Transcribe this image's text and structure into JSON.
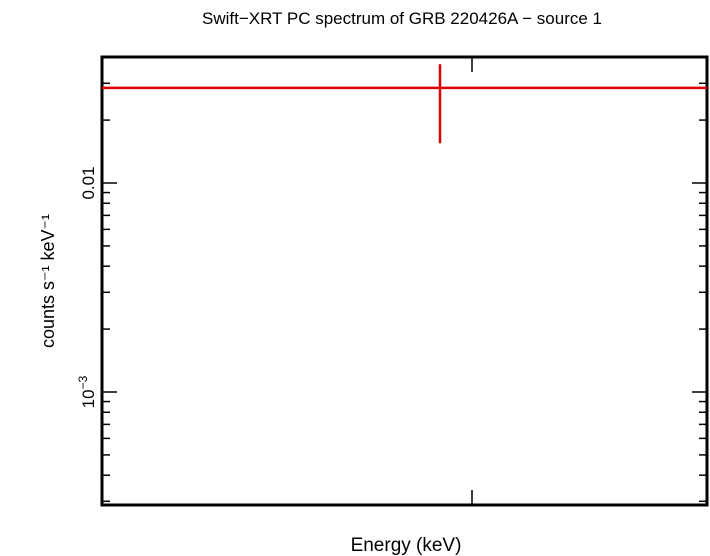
{
  "chart_data": {
    "type": "scatter",
    "title": "Swift−XRT PC spectrum of GRB 220426A − source 1",
    "xlabel": "Energy (keV)",
    "ylabel": "counts s⁻¹ keV⁻¹",
    "y_scale": "log",
    "y_tick_labels": [
      {
        "value": 0.01,
        "label": "0.01"
      },
      {
        "value": 0.001,
        "base": "10",
        "exponent": "−3"
      }
    ],
    "ylim": [
      0.00027,
      0.037
    ],
    "points": [
      {
        "y": 0.0285,
        "y_err_low": 0.0155,
        "y_err_high": 0.037
      }
    ],
    "grid": false,
    "legend": "none",
    "colors": {
      "data": "#e00000",
      "axes": "#000000"
    }
  }
}
